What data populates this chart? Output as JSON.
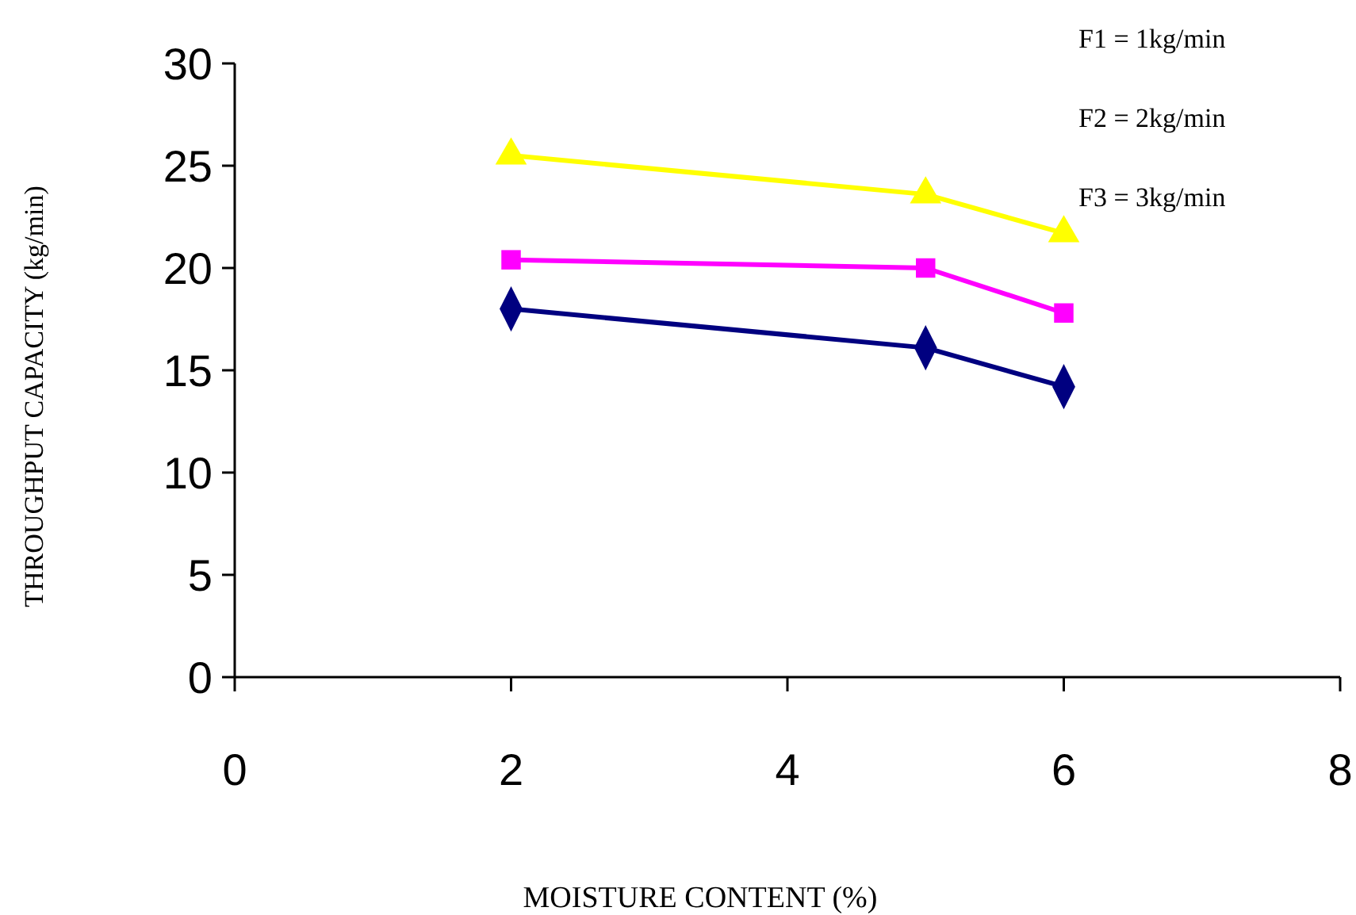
{
  "chart_data": {
    "type": "line",
    "xlabel": "MOISTURE CONTENT (%)",
    "ylabel": "THROUGHPUT CAPACITY (kg/min)",
    "x": [
      2,
      5,
      6
    ],
    "series": [
      {
        "color": "#000080",
        "values": [
          18.0,
          16.1,
          14.2
        ],
        "marker": "diamond"
      },
      {
        "color": "#ff00ff",
        "values": [
          20.4,
          20.0,
          17.8
        ],
        "marker": "square"
      },
      {
        "color": "#ffff00",
        "values": [
          25.5,
          23.6,
          21.7
        ],
        "marker": "triangle"
      }
    ],
    "xlim": [
      0,
      8
    ],
    "xticks": [
      0,
      2,
      4,
      6,
      8
    ],
    "ylim": [
      0,
      30
    ],
    "yticks": [
      0,
      5,
      10,
      15,
      20,
      25,
      30
    ],
    "annotations": [
      "F1 = 1kg/min",
      "F2 = 2kg/min",
      "F3 = 3kg/min"
    ],
    "line_style": "solid",
    "grid": false
  }
}
